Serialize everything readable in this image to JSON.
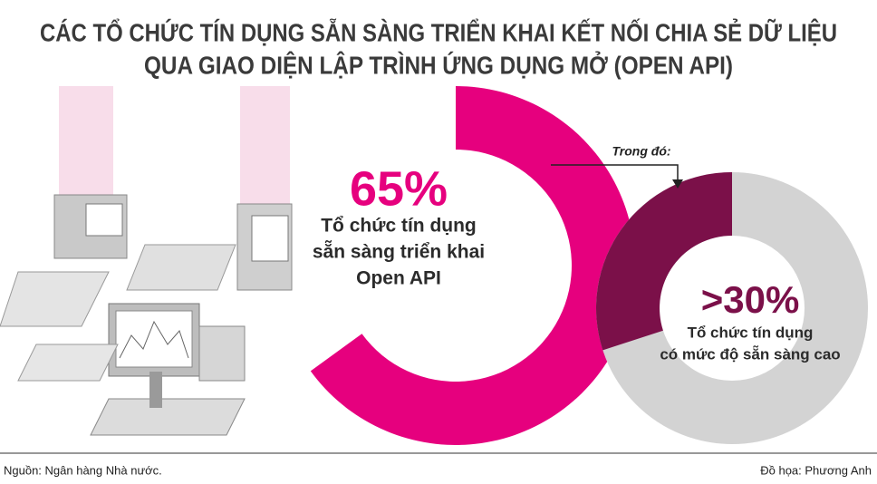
{
  "title": [
    "CÁC TỔ CHỨC TÍN DỤNG SẴN SÀNG TRIỂN KHAI KẾT NỐI CHIA SẺ DỮ LIỆU",
    "QUA GIAO DIỆN LẬP TRÌNH ỨNG DỤNG MỞ (OPEN API)"
  ],
  "source": "Nguồn: Ngân hàng Nhà nước.",
  "credit": "Đồ họa: Phương Anh",
  "chart_data": [
    {
      "type": "donut",
      "values": [
        65
      ],
      "value_labels": [
        "65%"
      ],
      "color": "#e6007e",
      "label": [
        "Tổ chức tín dụng",
        "sẵn sàng triển khai",
        "Open API"
      ]
    },
    {
      "type": "donut",
      "annotation": "Trong đó:",
      "values": [
        30
      ],
      "value_labels": [
        ">30%"
      ],
      "color": "#7b1049",
      "rest_color": "#d3d3d3",
      "label": [
        "Tổ chức tín dụng",
        "có mức độ sẵn sàng cao"
      ]
    }
  ]
}
